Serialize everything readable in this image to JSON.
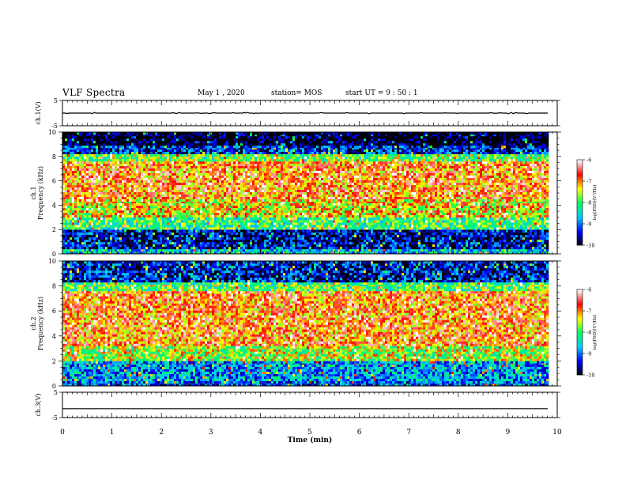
{
  "header": {
    "title": "VLF Spectra",
    "date": "May 1 , 2020",
    "station": "station= MOS",
    "start": "start UT = 9 : 50 : 1"
  },
  "chart_data": [
    {
      "type": "line",
      "panel": "ch1_waveform",
      "ylabel": "ch.1(V)",
      "ylim": [
        -5,
        5
      ],
      "yticks": [
        "5",
        "-5"
      ],
      "x": [
        0,
        9.83
      ],
      "y": [
        0.0,
        0.0
      ],
      "note_level": "trace nearly flat just above 0 V with small spikes"
    },
    {
      "type": "heatmap",
      "panel": "ch1_spectrogram",
      "ylabel": "ch.1 Frequency (kHz)",
      "xlim": [
        0,
        10
      ],
      "ylim": [
        0,
        10
      ],
      "yticks": [
        "0",
        "2",
        "4",
        "6",
        "8",
        "10"
      ],
      "data_xmax": 9.83,
      "bands": [
        {
          "from": 0.0,
          "to": 0.4,
          "level": -8.5
        },
        {
          "from": 0.4,
          "to": 2.0,
          "level": -9.5
        },
        {
          "from": 2.0,
          "to": 3.0,
          "level": -8.0
        },
        {
          "from": 3.0,
          "to": 4.5,
          "level": -7.3
        },
        {
          "from": 4.5,
          "to": 7.6,
          "level": -6.9
        },
        {
          "from": 7.6,
          "to": 8.2,
          "level": -7.8
        },
        {
          "from": 8.2,
          "to": 8.9,
          "level": -9.3
        },
        {
          "from": 8.9,
          "to": 10.0,
          "level": -10
        }
      ],
      "colorbar": {
        "label": "log(PSD)(V²/Hz)",
        "ticks": [
          "-6",
          "-7",
          "-8",
          "-9",
          "-10"
        ],
        "range": [
          -10,
          -6
        ]
      }
    },
    {
      "type": "heatmap",
      "panel": "ch2_spectrogram",
      "ylabel": "ch.2 Frequency (kHz)",
      "xlim": [
        0,
        10
      ],
      "ylim": [
        0,
        10
      ],
      "yticks": [
        "0",
        "2",
        "4",
        "6",
        "8",
        "10"
      ],
      "data_xmax": 9.83,
      "bands": [
        {
          "from": 0.0,
          "to": 0.4,
          "level": -9.0
        },
        {
          "from": 0.4,
          "to": 2.0,
          "level": -8.8
        },
        {
          "from": 2.0,
          "to": 3.2,
          "level": -7.6
        },
        {
          "from": 3.2,
          "to": 7.6,
          "level": -6.9
        },
        {
          "from": 7.6,
          "to": 8.3,
          "level": -7.9
        },
        {
          "from": 8.3,
          "to": 10.0,
          "level": -9.4
        }
      ],
      "colorbar": {
        "label": "log(PSD)(V²/Hz)",
        "ticks": [
          "-6",
          "-7",
          "-8",
          "-9",
          "-10"
        ],
        "range": [
          -10,
          -6
        ]
      }
    },
    {
      "type": "line",
      "panel": "ch3_waveform",
      "ylabel": "ch.3(V)",
      "ylim": [
        -5,
        5
      ],
      "yticks": [
        "5",
        "-5"
      ],
      "x": [
        0,
        9.83
      ],
      "y": [
        -1.5,
        -1.5
      ]
    }
  ],
  "xaxis": {
    "label": "Time (min)",
    "ticks": [
      "0",
      "1",
      "2",
      "3",
      "4",
      "5",
      "6",
      "7",
      "8",
      "9",
      "10"
    ],
    "range": [
      0,
      10
    ]
  },
  "colors": {
    "colormap": [
      "#000000",
      "#0000ff",
      "#00c8ff",
      "#00ff60",
      "#ffff00",
      "#ff0000",
      "#ffffff"
    ]
  }
}
